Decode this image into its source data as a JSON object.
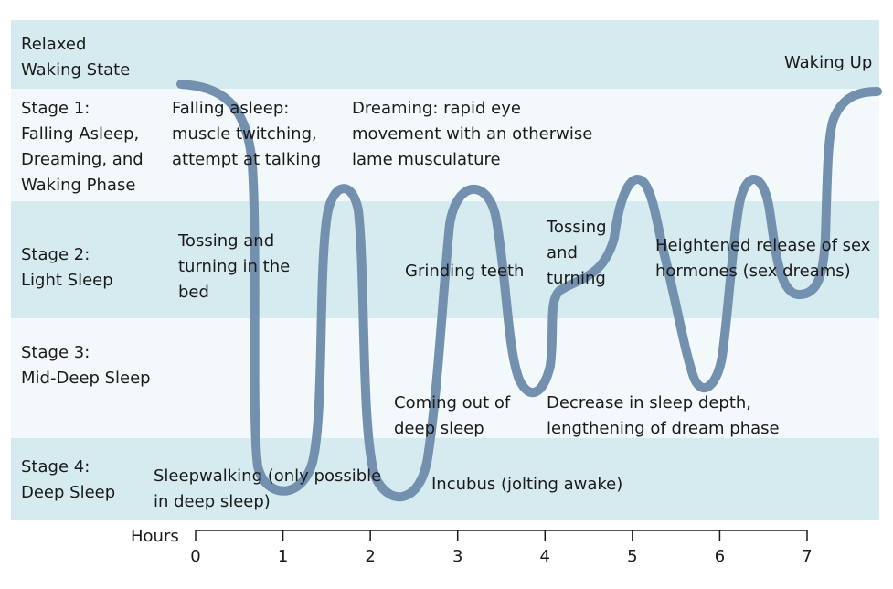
{
  "colors": {
    "band_dark": "#d6ebef",
    "band_light": "#f3f8fb",
    "curve": "#7390ae",
    "axis": "#1a1a1a"
  },
  "stages": [
    {
      "label": "Relaxed\nWaking State"
    },
    {
      "label": "Stage 1:\nFalling Asleep,\nDreaming, and\nWaking Phase"
    },
    {
      "label": "Stage 2:\nLight Sleep"
    },
    {
      "label": "Stage 3:\nMid-Deep Sleep"
    },
    {
      "label": "Stage 4:\nDeep Sleep"
    }
  ],
  "annotations": {
    "waking_up": "Waking Up",
    "falling_asleep": "Falling asleep:\nmuscle twitching,\nattempt at talking",
    "dreaming": "Dreaming: rapid eye\nmovement with an otherwise\nlame musculature",
    "tossing_bed": "Tossing and\nturning in the\nbed",
    "grinding": "Grinding teeth",
    "tossing": "Tossing\nand\nturning",
    "hormones": "Heightened release of sex\nhormones (sex dreams)",
    "coming_out": "Coming out of\ndeep sleep",
    "decrease": "Decrease in sleep depth,\nlengthening of dream phase",
    "sleepwalking": "Sleepwalking (only possible\nin deep sleep)",
    "incubus": "Incubus (jolting awake)"
  },
  "axis": {
    "title": "Hours",
    "ticks": [
      "0",
      "1",
      "2",
      "3",
      "4",
      "5",
      "6",
      "7"
    ]
  }
}
